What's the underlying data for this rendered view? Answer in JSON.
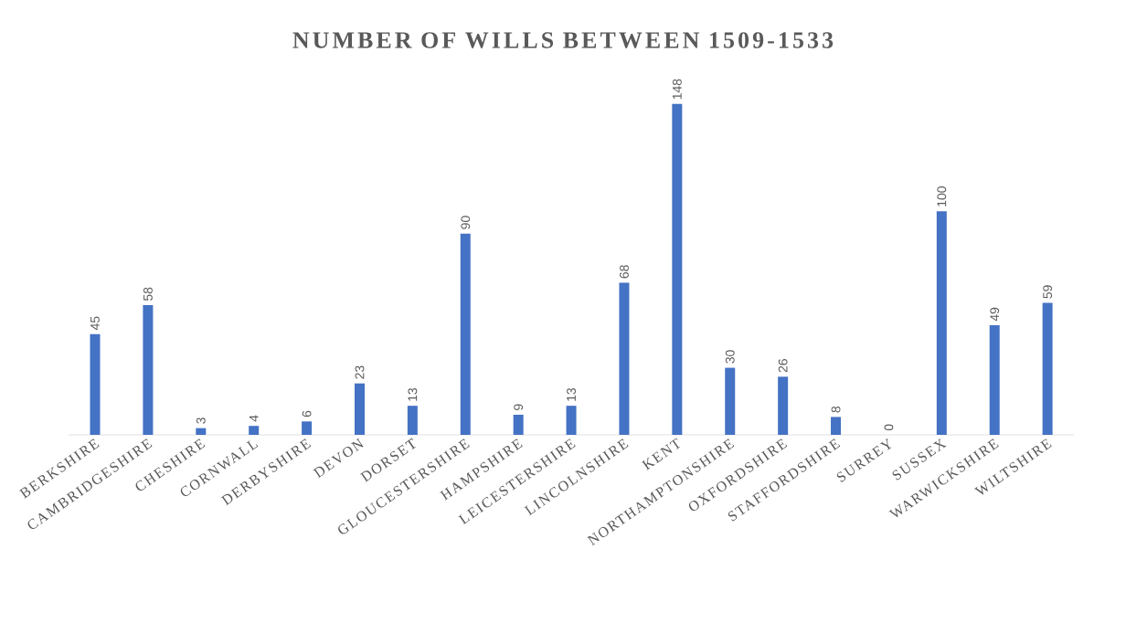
{
  "chart_data": {
    "type": "bar",
    "title": "NUMBER OF WILLS BETWEEN 1509-1533",
    "categories": [
      "BERKSHIRE",
      "CAMBRIDGESHIRE",
      "CHESHIRE",
      "CORNWALL",
      "DERBYSHIRE",
      "DEVON",
      "DORSET",
      "GLOUCESTERSHIRE",
      "HAMPSHIRE",
      "LEICESTERSHIRE",
      "LINCOLNSHIRE",
      "KENT",
      "NORTHAMPTONSHIRE",
      "OXFORDSHIRE",
      "STAFFORDSHIRE",
      "SURREY",
      "SUSSEX",
      "WARWICKSHIRE",
      "WILTSHIRE"
    ],
    "values": [
      45,
      58,
      3,
      4,
      6,
      23,
      13,
      90,
      9,
      13,
      68,
      148,
      30,
      26,
      8,
      0,
      100,
      49,
      59
    ],
    "color": "#4472c4",
    "data_labels": true
  }
}
